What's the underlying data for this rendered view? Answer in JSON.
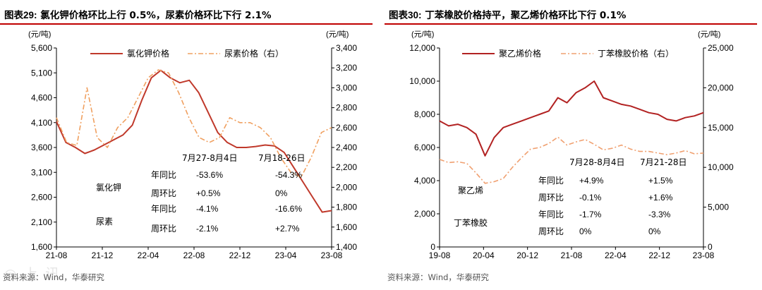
{
  "charts": [
    {
      "label": "图表29:",
      "title": "氯化钾价格环比上行 0.5%，尿素价格环比下行 2.1%",
      "source": "资料来源：Wind，华泰研究",
      "left_unit": "(元/吨)",
      "right_unit": "(元/吨)",
      "left_ticks": [
        "5,600",
        "5,100",
        "4,600",
        "4,100",
        "3,600",
        "3,100",
        "2,600",
        "2,100",
        "1,600"
      ],
      "right_ticks": [
        "3,400",
        "3,200",
        "3,000",
        "2,800",
        "2,600",
        "2,400",
        "2,200",
        "2,000",
        "1,800",
        "1,600",
        "1,400"
      ],
      "x_ticks": [
        "21-08",
        "21-12",
        "22-04",
        "22-08",
        "22-12",
        "23-04",
        "23-08"
      ],
      "legend": [
        "氯化钾价格",
        "尿素价格（右）"
      ],
      "table": {
        "headers": [
          "7月27-8月4日",
          "7月18-26日"
        ],
        "groups": [
          {
            "name": "氯化钾",
            "rows": [
              {
                "label": "年同比",
                "v1": "-53.6%",
                "v2": "-54.3%"
              },
              {
                "label": "周环比",
                "v1": "+0.5%",
                "v2": "0%"
              }
            ]
          },
          {
            "name": "尿素",
            "rows": [
              {
                "label": "年同比",
                "v1": "-4.1%",
                "v2": "-16.6%"
              },
              {
                "label": "周环比",
                "v1": "-2.1%",
                "v2": "+2.7%"
              }
            ]
          }
        ]
      }
    },
    {
      "label": "图表30:",
      "title": "丁苯橡胶价格持平，聚乙烯价格环比下行 0.1%",
      "source": "资料来源：Wind，华泰研究",
      "left_unit": "(元/吨)",
      "right_unit": "(元/吨)",
      "left_ticks": [
        "12,000",
        "10,000",
        "8,000",
        "6,000",
        "4,000",
        "2,000",
        "0"
      ],
      "right_ticks": [
        "25,000",
        "20,000",
        "15,000",
        "10,000",
        "5,000",
        "0"
      ],
      "x_ticks": [
        "19-08",
        "20-04",
        "20-12",
        "21-08",
        "22-04",
        "22-12",
        "23-08"
      ],
      "legend": [
        "聚乙烯价格",
        "丁苯橡胶价格（右）"
      ],
      "annot": [
        "聚乙烯",
        "丁苯橡胶"
      ],
      "table": {
        "headers": [
          "7月28-8月4日",
          "7月21-28日"
        ],
        "rows": [
          {
            "label": "年同比",
            "v1": "+4.9%",
            "v2": "+1.5%"
          },
          {
            "label": "周环比",
            "v1": "-0.1%",
            "v2": "+1.6%"
          },
          {
            "label": "年同比",
            "v1": "-1.7%",
            "v2": "-3.3%"
          },
          {
            "label": "周环比",
            "v1": "0%",
            "v2": "0%"
          }
        ]
      }
    }
  ],
  "chart_data": [
    {
      "type": "line",
      "x_range": [
        "2021-08",
        "2023-08"
      ],
      "ylim": [
        1600,
        5600
      ],
      "y2lim": [
        1400,
        3400
      ],
      "series": [
        {
          "name": "氯化钾价格",
          "axis": "left",
          "color": "#c0392b",
          "points": [
            [
              0,
              4120
            ],
            [
              1,
              3700
            ],
            [
              2,
              3600
            ],
            [
              3,
              3480
            ],
            [
              4,
              3550
            ],
            [
              5,
              3650
            ],
            [
              6,
              3750
            ],
            [
              7,
              3850
            ],
            [
              8,
              4050
            ],
            [
              9,
              4550
            ],
            [
              10,
              5000
            ],
            [
              11,
              5150
            ],
            [
              12,
              5000
            ],
            [
              13,
              4900
            ],
            [
              14,
              4950
            ],
            [
              15,
              4700
            ],
            [
              16,
              4300
            ],
            [
              17,
              3900
            ],
            [
              18,
              3700
            ],
            [
              19,
              3600
            ],
            [
              20,
              3600
            ],
            [
              21,
              3620
            ],
            [
              22,
              3650
            ],
            [
              23,
              3630
            ],
            [
              24,
              3500
            ],
            [
              25,
              3200
            ],
            [
              26,
              2900
            ],
            [
              27,
              2600
            ],
            [
              28,
              2300
            ],
            [
              29,
              2330
            ]
          ]
        },
        {
          "name": "尿素价格（右）",
          "axis": "right",
          "color": "#f0a060",
          "points": [
            [
              0,
              2700
            ],
            [
              1,
              2450
            ],
            [
              2,
              2420
            ],
            [
              3,
              3000
            ],
            [
              4,
              2500
            ],
            [
              5,
              2400
            ],
            [
              6,
              2600
            ],
            [
              7,
              2700
            ],
            [
              8,
              2900
            ],
            [
              9,
              3100
            ],
            [
              10,
              3180
            ],
            [
              11,
              3150
            ],
            [
              12,
              2950
            ],
            [
              13,
              2700
            ],
            [
              14,
              2500
            ],
            [
              15,
              2450
            ],
            [
              16,
              2500
            ],
            [
              17,
              2700
            ],
            [
              18,
              2650
            ],
            [
              19,
              2650
            ],
            [
              20,
              2600
            ],
            [
              21,
              2500
            ],
            [
              22,
              2300
            ],
            [
              23,
              2150
            ],
            [
              24,
              2100
            ],
            [
              25,
              2300
            ],
            [
              26,
              2550
            ],
            [
              27,
              2600
            ]
          ]
        }
      ]
    },
    {
      "type": "line",
      "x_range": [
        "2019-08",
        "2023-08"
      ],
      "ylim": [
        0,
        12000
      ],
      "y2lim": [
        0,
        25000
      ],
      "series": [
        {
          "name": "聚乙烯价格",
          "axis": "left",
          "color": "#b22222",
          "points": [
            [
              0,
              7600
            ],
            [
              1,
              7300
            ],
            [
              2,
              7400
            ],
            [
              3,
              7200
            ],
            [
              4,
              6800
            ],
            [
              5,
              5500
            ],
            [
              6,
              6600
            ],
            [
              7,
              7200
            ],
            [
              8,
              7400
            ],
            [
              9,
              7600
            ],
            [
              10,
              7800
            ],
            [
              11,
              8000
            ],
            [
              12,
              8200
            ],
            [
              13,
              9000
            ],
            [
              14,
              8700
            ],
            [
              15,
              9300
            ],
            [
              16,
              9600
            ],
            [
              17,
              10000
            ],
            [
              18,
              9000
            ],
            [
              19,
              8800
            ],
            [
              20,
              8600
            ],
            [
              21,
              8500
            ],
            [
              22,
              8300
            ],
            [
              23,
              8100
            ],
            [
              24,
              8000
            ],
            [
              25,
              7700
            ],
            [
              26,
              7600
            ],
            [
              27,
              7800
            ],
            [
              28,
              7900
            ],
            [
              29,
              8100
            ]
          ]
        },
        {
          "name": "丁苯橡胶价格（右）",
          "axis": "right",
          "color": "#f0a070",
          "points": [
            [
              0,
              11000
            ],
            [
              1,
              10600
            ],
            [
              2,
              10700
            ],
            [
              3,
              10500
            ],
            [
              4,
              9300
            ],
            [
              5,
              8000
            ],
            [
              6,
              8200
            ],
            [
              7,
              8600
            ],
            [
              8,
              10000
            ],
            [
              9,
              11200
            ],
            [
              10,
              12300
            ],
            [
              11,
              12500
            ],
            [
              12,
              13000
            ],
            [
              13,
              13800
            ],
            [
              14,
              12800
            ],
            [
              15,
              13200
            ],
            [
              16,
              13500
            ],
            [
              17,
              12900
            ],
            [
              18,
              12200
            ],
            [
              19,
              12400
            ],
            [
              20,
              12800
            ],
            [
              21,
              12300
            ],
            [
              22,
              12000
            ],
            [
              23,
              12000
            ],
            [
              24,
              11800
            ],
            [
              25,
              11600
            ],
            [
              26,
              11800
            ],
            [
              27,
              12100
            ],
            [
              28,
              11700
            ],
            [
              29,
              11800
            ]
          ]
        }
      ]
    }
  ]
}
